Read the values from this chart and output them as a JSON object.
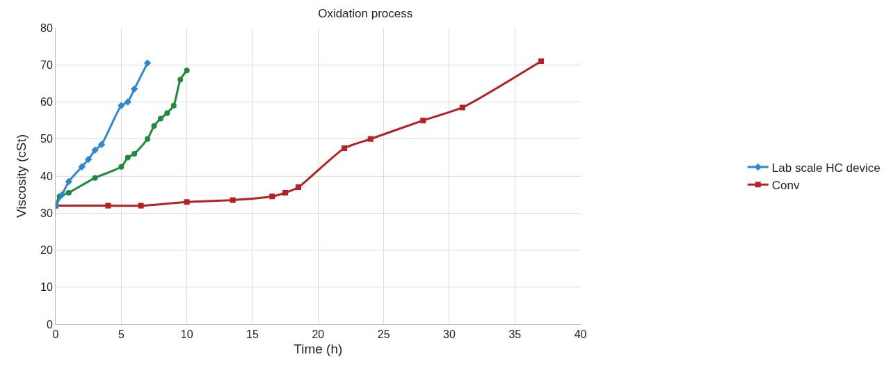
{
  "chart_data": {
    "type": "line",
    "title": "Oxidation process",
    "xlabel": "Time (h)",
    "ylabel": "Viscosity (cSt)",
    "xlim": [
      0,
      40
    ],
    "xticks": [
      0,
      5,
      10,
      15,
      20,
      25,
      30,
      35,
      40
    ],
    "ylim": [
      0,
      80
    ],
    "yticks": [
      0,
      10,
      20,
      30,
      40,
      50,
      60,
      70,
      80
    ],
    "grid": true,
    "legend": "right",
    "series": [
      {
        "name": "Lab scale HC device",
        "color": "#2e86d1",
        "marker": "diamond",
        "x": [
          0,
          0.5,
          1,
          2,
          2.5,
          3,
          3.5,
          5,
          5.5,
          6,
          7
        ],
        "values": [
          32,
          35,
          38.5,
          42.5,
          44.5,
          47,
          48.5,
          59,
          60,
          63.5,
          70.5
        ]
      },
      {
        "color": "#1f8a3a",
        "marker": "circle",
        "x": [
          0,
          0.3,
          1,
          3,
          5,
          5.5,
          6,
          7,
          7.5,
          8,
          8.5,
          9,
          9.5,
          10
        ],
        "values": [
          32,
          34.5,
          35.5,
          39.5,
          42.5,
          45,
          46,
          50,
          53.5,
          55.5,
          57,
          59,
          66,
          68.5
        ]
      },
      {
        "name": "Conv",
        "color": "#b52025",
        "marker": "square",
        "x": [
          0,
          4,
          6.5,
          10,
          13.5,
          16.5,
          17.5,
          18.5,
          22,
          24,
          28,
          31,
          37
        ],
        "values": [
          32,
          32,
          32,
          33,
          33.5,
          34.5,
          35.5,
          37,
          47.5,
          50,
          55,
          58.5,
          71
        ]
      }
    ]
  }
}
